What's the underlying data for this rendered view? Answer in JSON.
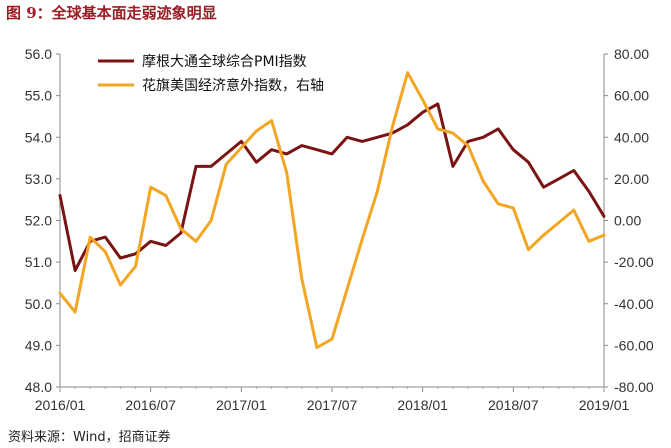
{
  "title": "图 9：全球基本面走弱迹象明显",
  "source": "资料来源：Wind，招商证券",
  "chart_data": {
    "type": "line",
    "title": "图 9：全球基本面走弱迹象明显",
    "xlabel": "",
    "ylabel": "",
    "x_tick_labels": [
      "2016/01",
      "2016/07",
      "2017/01",
      "2017/07",
      "2018/01",
      "2018/07",
      "2019/01"
    ],
    "y_left": {
      "ylim": [
        48.0,
        56.0
      ],
      "ticks": [
        "48.0",
        "49.0",
        "50.0",
        "51.0",
        "52.0",
        "53.0",
        "54.0",
        "55.0",
        "56.0"
      ]
    },
    "y_right": {
      "ylim": [
        -80,
        80
      ],
      "ticks": [
        "-80.00",
        "-60.00",
        "-40.00",
        "-20.00",
        "0.00",
        "20.00",
        "40.00",
        "60.00",
        "80.00"
      ]
    },
    "grid": false,
    "legend_position": "top-left",
    "series": [
      {
        "name": "摩根大通全球综合PMI指数",
        "axis": "left",
        "color": "#7a1414",
        "x": [
          "2016/01",
          "2016/02",
          "2016/03",
          "2016/04",
          "2016/05",
          "2016/06",
          "2016/07",
          "2016/08",
          "2016/09",
          "2016/10",
          "2016/11",
          "2016/12",
          "2017/01",
          "2017/02",
          "2017/03",
          "2017/04",
          "2017/05",
          "2017/06",
          "2017/07",
          "2017/08",
          "2017/09",
          "2017/10",
          "2017/11",
          "2017/12",
          "2018/01",
          "2018/02",
          "2018/03",
          "2018/04",
          "2018/05",
          "2018/06",
          "2018/07",
          "2018/08",
          "2018/09",
          "2018/10",
          "2018/11",
          "2018/12",
          "2019/01"
        ],
        "values": [
          52.6,
          50.8,
          51.5,
          51.6,
          51.1,
          51.2,
          51.5,
          51.4,
          51.7,
          53.3,
          53.3,
          53.6,
          53.9,
          53.4,
          53.7,
          53.6,
          53.8,
          53.7,
          53.6,
          54.0,
          53.9,
          54.0,
          54.1,
          54.3,
          54.6,
          54.8,
          53.3,
          53.9,
          54.0,
          54.2,
          53.7,
          53.4,
          52.8,
          53.0,
          53.2,
          52.7,
          52.1
        ]
      },
      {
        "name": "花旗美国经济意外指数，右轴",
        "axis": "right",
        "color": "#f2a623",
        "x": [
          "2016/01",
          "2016/02",
          "2016/03",
          "2016/04",
          "2016/05",
          "2016/06",
          "2016/07",
          "2016/08",
          "2016/09",
          "2016/10",
          "2016/11",
          "2016/12",
          "2017/01",
          "2017/02",
          "2017/03",
          "2017/04",
          "2017/05",
          "2017/06",
          "2017/07",
          "2017/08",
          "2017/09",
          "2017/10",
          "2017/11",
          "2017/12",
          "2018/01",
          "2018/02",
          "2018/03",
          "2018/04",
          "2018/05",
          "2018/06",
          "2018/07",
          "2018/08",
          "2018/09",
          "2018/10",
          "2018/11",
          "2018/12",
          "2019/01"
        ],
        "values": [
          -35,
          -44,
          -8,
          -15,
          -31,
          -22,
          16,
          12,
          -4,
          -10,
          0,
          27,
          35,
          43,
          48,
          23,
          -28,
          -61,
          -57,
          -33,
          -9,
          14,
          45,
          71,
          58,
          44,
          42,
          36,
          19,
          8,
          6,
          -14,
          -7,
          -1,
          5,
          -10,
          -7
        ]
      }
    ]
  }
}
